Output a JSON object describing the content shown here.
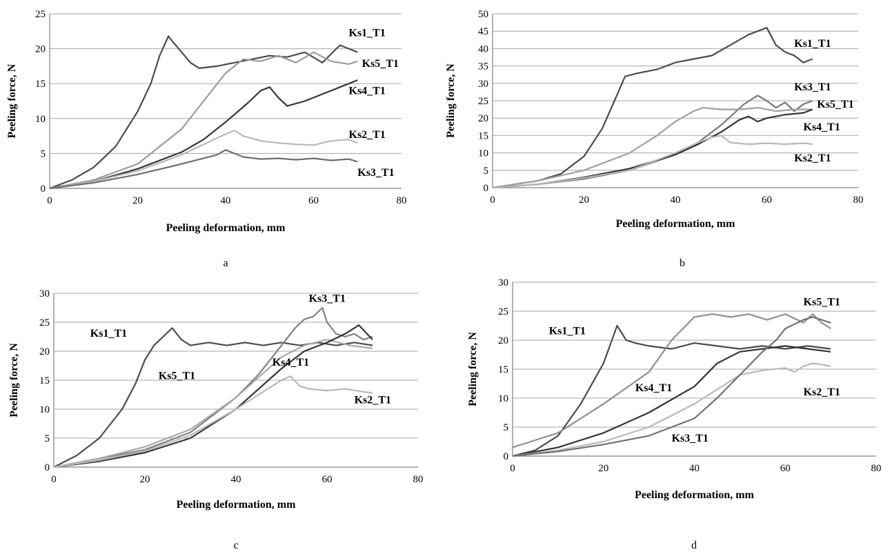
{
  "chart_data": [
    {
      "panel": "a",
      "type": "line",
      "xlabel": "Peeling deformation, mm",
      "ylabel": "Peeling force, N",
      "xlim": [
        0,
        80
      ],
      "ylim": [
        0,
        25
      ],
      "xticks": [
        0,
        20,
        40,
        60,
        80
      ],
      "yticks": [
        0,
        5,
        10,
        15,
        20,
        25
      ],
      "grid": "horizontal",
      "series": [
        {
          "name": "Ks1_T1",
          "color": "#4a4a4a",
          "x": [
            0,
            5,
            10,
            15,
            20,
            23,
            25,
            27,
            28,
            30,
            32,
            34,
            38,
            42,
            46,
            50,
            54,
            58,
            62,
            66,
            70
          ],
          "y": [
            0,
            1.2,
            3,
            6,
            11,
            15,
            19,
            21.8,
            21,
            19.5,
            18,
            17.2,
            17.5,
            18,
            18.5,
            19,
            18.8,
            19.5,
            18,
            20.5,
            19.5
          ],
          "label_at": [
            68,
            21.8
          ]
        },
        {
          "name": "Ks5_T1",
          "color": "#9a9a9a",
          "x": [
            0,
            10,
            20,
            30,
            35,
            40,
            44,
            48,
            52,
            56,
            60,
            64,
            68,
            70
          ],
          "y": [
            0,
            1.2,
            3.5,
            8.5,
            12.5,
            16.5,
            18.5,
            18.2,
            19,
            18,
            19.5,
            18.2,
            17.8,
            18.2
          ],
          "label_at": [
            71,
            17.4
          ]
        },
        {
          "name": "Ks4_T1",
          "color": "#333333",
          "x": [
            0,
            10,
            20,
            30,
            35,
            40,
            45,
            48,
            50,
            52,
            54,
            58,
            62,
            66,
            70
          ],
          "y": [
            0,
            1,
            2.8,
            5.2,
            7,
            9.5,
            12.2,
            14,
            14.5,
            13,
            11.8,
            12.5,
            13.5,
            14.5,
            15.5
          ],
          "label_at": [
            68,
            13.5
          ]
        },
        {
          "name": "Ks2_T1",
          "color": "#b8b8b8",
          "x": [
            0,
            10,
            20,
            30,
            38,
            42,
            44,
            48,
            52,
            56,
            60,
            64,
            68,
            70
          ],
          "y": [
            0,
            1,
            2.5,
            4.8,
            7.2,
            8.3,
            7.5,
            6.8,
            6.5,
            6.3,
            6.2,
            6.8,
            7,
            6.5
          ],
          "label_at": [
            68,
            7.2
          ]
        },
        {
          "name": "Ks3_T1",
          "color": "#6e6e6e",
          "x": [
            0,
            10,
            20,
            30,
            38,
            40,
            42,
            44,
            48,
            52,
            56,
            60,
            64,
            68,
            70
          ],
          "y": [
            0,
            0.8,
            2,
            3.5,
            4.8,
            5.5,
            5,
            4.5,
            4.2,
            4.3,
            4.1,
            4.3,
            4,
            4.2,
            3.8
          ],
          "label_at": [
            70,
            1.8
          ]
        }
      ]
    },
    {
      "panel": "b",
      "type": "line",
      "xlabel": "Peeling deformation, mm",
      "ylabel": "Peeling force, N",
      "xlim": [
        0,
        80
      ],
      "ylim": [
        0,
        50
      ],
      "xticks": [
        0,
        20,
        40,
        60,
        80
      ],
      "yticks": [
        0,
        5,
        10,
        15,
        20,
        25,
        30,
        35,
        40,
        45,
        50
      ],
      "grid": "horizontal",
      "series": [
        {
          "name": "Ks1_T1",
          "color": "#4a4a4a",
          "x": [
            0,
            10,
            15,
            20,
            24,
            27,
            29,
            32,
            36,
            40,
            44,
            48,
            52,
            56,
            58,
            60,
            62,
            64,
            66,
            68,
            70
          ],
          "y": [
            0,
            2,
            4,
            9,
            17,
            26,
            32,
            33,
            34,
            36,
            37,
            38,
            41,
            44,
            45,
            46,
            41,
            39,
            38,
            36,
            37
          ],
          "label_at": [
            66,
            40.5
          ]
        },
        {
          "name": "Ks3_T1",
          "color": "#777777",
          "x": [
            0,
            10,
            20,
            30,
            40,
            45,
            50,
            55,
            58,
            60,
            62,
            64,
            66,
            68,
            70
          ],
          "y": [
            0,
            1,
            2.5,
            5,
            9.5,
            13,
            18,
            24,
            26.5,
            25,
            23,
            24.5,
            22,
            24,
            25
          ],
          "label_at": [
            66,
            28
          ]
        },
        {
          "name": "Ks5_T1",
          "color": "#a0a0a0",
          "x": [
            0,
            10,
            20,
            30,
            36,
            40,
            44,
            46,
            50,
            54,
            58,
            62,
            66,
            70
          ],
          "y": [
            0,
            2,
            5,
            10,
            15,
            19,
            22,
            23,
            22.5,
            22.5,
            23,
            22,
            22.5,
            22.5
          ],
          "label_at": [
            71,
            23
          ]
        },
        {
          "name": "Ks4_T1",
          "color": "#333333",
          "x": [
            0,
            10,
            20,
            30,
            40,
            45,
            50,
            54,
            56,
            58,
            60,
            64,
            68,
            70
          ],
          "y": [
            0,
            1,
            3,
            5.5,
            9.5,
            12.5,
            16,
            19.5,
            20.5,
            19,
            20,
            21,
            21.5,
            22.5
          ],
          "label_at": [
            68,
            16.5
          ]
        },
        {
          "name": "Ks2_T1",
          "color": "#b8b8b8",
          "x": [
            0,
            10,
            20,
            30,
            40,
            45,
            48,
            50,
            52,
            56,
            60,
            64,
            68,
            70
          ],
          "y": [
            0,
            1,
            2.8,
            5,
            10,
            13,
            14.5,
            15,
            13,
            12.5,
            12.8,
            12.5,
            12.8,
            12.5
          ],
          "label_at": [
            66,
            7.5
          ]
        }
      ]
    },
    {
      "panel": "c",
      "type": "line",
      "xlabel": "Peeling deformation, mm",
      "ylabel": "Peeling force, N",
      "xlim": [
        0,
        80
      ],
      "ylim": [
        0,
        30
      ],
      "xticks": [
        0,
        20,
        40,
        60,
        80
      ],
      "yticks": [
        0,
        5,
        10,
        15,
        20,
        25,
        30
      ],
      "grid": "horizontal",
      "series": [
        {
          "name": "Ks1_T1",
          "color": "#4a4a4a",
          "x": [
            0,
            5,
            10,
            15,
            18,
            20,
            22,
            24,
            26,
            28,
            30,
            34,
            38,
            42,
            46,
            50,
            54,
            58,
            62,
            66,
            70
          ],
          "y": [
            0,
            2,
            5,
            10,
            14.5,
            18.5,
            21,
            22.5,
            24,
            22,
            21,
            21.5,
            21,
            21.5,
            21,
            21.5,
            21,
            21.5,
            21,
            21.5,
            21
          ],
          "label_at": [
            8,
            22.5
          ]
        },
        {
          "name": "Ks3_T1",
          "color": "#808080",
          "x": [
            0,
            10,
            20,
            30,
            40,
            45,
            50,
            53,
            55,
            57,
            59,
            60,
            62,
            64,
            66,
            68,
            70
          ],
          "y": [
            0,
            1.5,
            3,
            6,
            12,
            16,
            21,
            24,
            25.5,
            26,
            27.5,
            25,
            23,
            22.5,
            23,
            22,
            22.5
          ],
          "label_at": [
            56,
            28.5
          ]
        },
        {
          "name": "Ks5_T1",
          "color": "#a8a8a8",
          "x": [
            0,
            10,
            20,
            30,
            40,
            45,
            50,
            55,
            60,
            65,
            70
          ],
          "y": [
            0,
            1.5,
            3.5,
            6.5,
            12,
            15.5,
            19,
            21,
            22,
            21,
            20.5
          ],
          "label_at": [
            23,
            15.2
          ]
        },
        {
          "name": "Ks4_T1",
          "color": "#333333",
          "x": [
            0,
            10,
            20,
            30,
            40,
            45,
            50,
            55,
            60,
            64,
            67,
            70
          ],
          "y": [
            0,
            1,
            2.5,
            5,
            10,
            13.5,
            17,
            20,
            21.5,
            23,
            24.5,
            22
          ],
          "label_at": [
            48,
            17.5
          ]
        },
        {
          "name": "Ks2_T1",
          "color": "#b8b8b8",
          "x": [
            0,
            10,
            20,
            30,
            40,
            45,
            50,
            52,
            54,
            56,
            60,
            64,
            68,
            70
          ],
          "y": [
            0,
            1.2,
            2.8,
            5.5,
            10,
            12.5,
            15,
            15.7,
            14,
            13.5,
            13.2,
            13.5,
            13,
            12.8
          ],
          "label_at": [
            66,
            11
          ]
        }
      ]
    },
    {
      "panel": "d",
      "type": "line",
      "xlabel": "Peeling deformation, mm",
      "ylabel": "Peeling force, N",
      "xlim": [
        0,
        80
      ],
      "ylim": [
        0,
        30
      ],
      "xticks": [
        0,
        20,
        40,
        60,
        80
      ],
      "yticks": [
        0,
        5,
        10,
        15,
        20,
        25,
        30
      ],
      "grid": "horizontal",
      "series": [
        {
          "name": "Ks1_T1",
          "color": "#4a4a4a",
          "x": [
            0,
            5,
            10,
            15,
            20,
            23,
            25,
            27,
            30,
            35,
            40,
            45,
            50,
            55,
            60,
            65,
            70
          ],
          "y": [
            0,
            1,
            3.5,
            9,
            16,
            22.5,
            20,
            19.5,
            19,
            18.5,
            19.5,
            19,
            18.5,
            19,
            18.5,
            19,
            18.5
          ],
          "label_at": [
            8,
            21
          ]
        },
        {
          "name": "Ks5_T1",
          "color": "#8e8e8e",
          "x": [
            0,
            10,
            20,
            30,
            35,
            40,
            44,
            48,
            52,
            56,
            60,
            64,
            66,
            68,
            70
          ],
          "y": [
            1.5,
            4,
            9,
            14.5,
            20,
            24,
            24.5,
            24,
            24.5,
            23.5,
            24.5,
            23,
            24.5,
            23,
            22
          ],
          "label_at": [
            64,
            26
          ]
        },
        {
          "name": "Ks4_T1",
          "color": "#333333",
          "x": [
            0,
            10,
            20,
            30,
            40,
            45,
            50,
            55,
            60,
            65,
            70
          ],
          "y": [
            0,
            1.5,
            4,
            7.5,
            12,
            16,
            18,
            18.5,
            19,
            18.5,
            18
          ],
          "label_at": [
            27,
            11.2
          ]
        },
        {
          "name": "Ks2_T1",
          "color": "#b8b8b8",
          "x": [
            0,
            10,
            20,
            30,
            40,
            45,
            50,
            55,
            60,
            62,
            64,
            66,
            68,
            70
          ],
          "y": [
            0,
            1,
            2.5,
            5,
            9,
            11.5,
            14,
            14.8,
            15.2,
            14.5,
            15.5,
            16,
            15.8,
            15.5
          ],
          "label_at": [
            64,
            10.5
          ]
        },
        {
          "name": "Ks3_T1",
          "color": "#707070",
          "x": [
            0,
            10,
            20,
            30,
            40,
            45,
            50,
            55,
            58,
            60,
            64,
            66,
            68,
            70
          ],
          "y": [
            0,
            0.8,
            2,
            3.5,
            6.5,
            10,
            14,
            18,
            20,
            22,
            23.5,
            24,
            23.5,
            23
          ],
          "label_at": [
            35,
            2.5
          ]
        }
      ]
    }
  ],
  "captions": [
    "a",
    "b",
    "c",
    "d"
  ]
}
